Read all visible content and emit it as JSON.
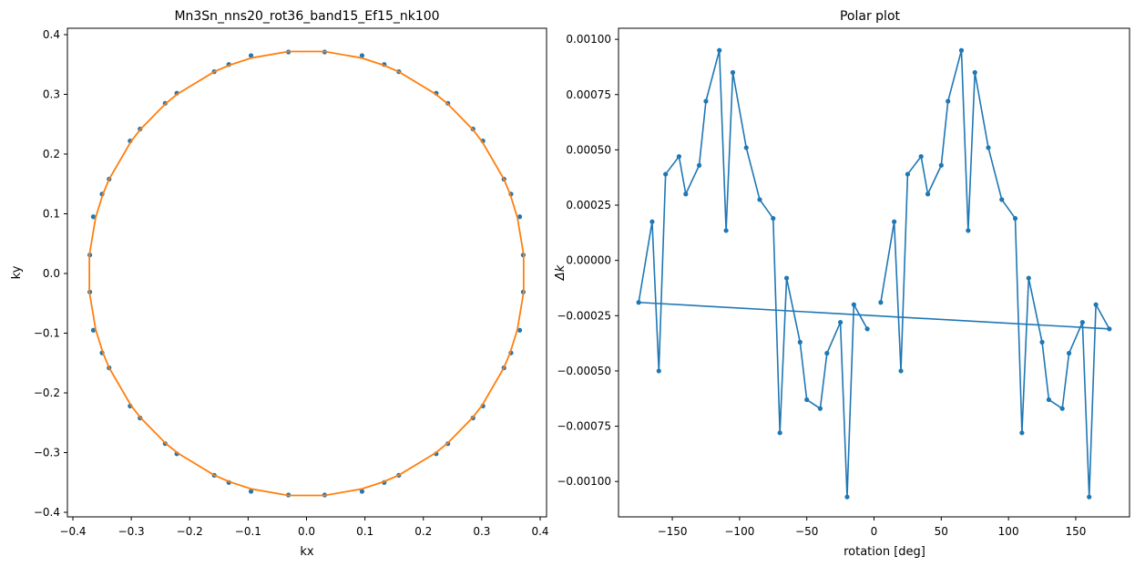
{
  "chart_data": [
    {
      "type": "scatter",
      "title": "Mn3Sn_nns20_rot36_band15_Ef15_nk100",
      "xlabel": "kx",
      "ylabel": "ky",
      "xlim": [
        -0.4,
        0.4
      ],
      "ylim": [
        -0.4,
        0.4
      ],
      "xticks": [
        -0.4,
        -0.3,
        -0.2,
        -0.1,
        0.0,
        0.1,
        0.2,
        0.3,
        0.4
      ],
      "xtick_labels": [
        "−0.4",
        "−0.3",
        "−0.2",
        "−0.1",
        "0.0",
        "0.1",
        "0.2",
        "0.3",
        "0.4"
      ],
      "yticks": [
        -0.4,
        -0.3,
        -0.2,
        -0.1,
        0.0,
        0.1,
        0.2,
        0.3,
        0.4
      ],
      "ytick_labels": [
        "−0.4",
        "−0.3",
        "−0.2",
        "−0.1",
        "0.0",
        "0.1",
        "0.2",
        "0.3",
        "0.4"
      ],
      "grid": false,
      "series": [
        {
          "kind": "points",
          "color": "#1f77b4",
          "x": [
            0.371,
            0.365,
            0.35,
            0.338,
            0.302,
            0.285,
            0.242,
            0.222,
            0.158,
            0.133,
            0.095,
            0.031,
            -0.031,
            -0.095,
            -0.133,
            -0.158,
            -0.222,
            -0.242,
            -0.285,
            -0.302,
            -0.338,
            -0.35,
            -0.365,
            -0.371,
            -0.371,
            -0.365,
            -0.35,
            -0.338,
            -0.302,
            -0.285,
            -0.242,
            -0.222,
            -0.158,
            -0.133,
            -0.095,
            -0.031,
            0.031,
            0.095,
            0.133,
            0.158,
            0.222,
            0.242,
            0.285,
            0.302,
            0.338,
            0.35,
            0.365,
            0.371
          ],
          "y": [
            0.031,
            0.095,
            0.133,
            0.158,
            0.222,
            0.242,
            0.285,
            0.302,
            0.338,
            0.35,
            0.365,
            0.371,
            0.371,
            0.365,
            0.35,
            0.338,
            0.302,
            0.285,
            0.242,
            0.222,
            0.158,
            0.133,
            0.095,
            0.031,
            -0.031,
            -0.095,
            -0.133,
            -0.158,
            -0.222,
            -0.242,
            -0.285,
            -0.302,
            -0.338,
            -0.35,
            -0.365,
            -0.371,
            -0.371,
            -0.365,
            -0.35,
            -0.338,
            -0.302,
            -0.285,
            -0.242,
            -0.222,
            -0.158,
            -0.133,
            -0.095,
            -0.031
          ]
        },
        {
          "kind": "line",
          "color": "#ff7f0e",
          "shape": "closed curve through all points",
          "radius": 0.373
        }
      ]
    },
    {
      "type": "line",
      "title": "Polar plot",
      "xlabel": "rotation [deg]",
      "ylabel": "Δk",
      "xlim": [
        -190,
        190
      ],
      "ylim": [
        -0.00116,
        0.00105
      ],
      "xticks": [
        -150,
        -100,
        -50,
        0,
        50,
        100,
        150
      ],
      "xtick_labels": [
        "−150",
        "−100",
        "−50",
        "0",
        "50",
        "100",
        "150"
      ],
      "yticks": [
        -0.001,
        -0.00075,
        -0.0005,
        -0.00025,
        0,
        0.00025,
        0.0005,
        0.00075,
        0.001
      ],
      "ytick_labels": [
        "−0.00100",
        "−0.00075",
        "−0.00050",
        "−0.00025",
        "0.00000",
        "0.00025",
        "0.00050",
        "0.00075",
        "0.00100"
      ],
      "grid": false,
      "series": [
        {
          "color": "#1f77b4",
          "marker": "o",
          "x": [
            5,
            15,
            20,
            25,
            35,
            40,
            50,
            55,
            65,
            70,
            75,
            85,
            95,
            105,
            110,
            115,
            125,
            130,
            140,
            145,
            155,
            160,
            165,
            175,
            -175,
            -165,
            -160,
            -155,
            -145,
            -140,
            -130,
            -125,
            -115,
            -110,
            -105,
            -95,
            -85,
            -75,
            -70,
            -65,
            -55,
            -50,
            -40,
            -35,
            -25,
            -20,
            -15,
            -5
          ],
          "y": [
            -0.00019,
            0.000175,
            -0.0005,
            0.00039,
            0.00047,
            0.0003,
            0.00043,
            0.00072,
            0.00095,
            0.000135,
            0.00085,
            0.00051,
            0.000275,
            0.00019,
            -0.00078,
            -8e-05,
            -0.00037,
            -0.00063,
            -0.00067,
            -0.00042,
            -0.00028,
            -0.00107,
            -0.0002,
            -0.00031,
            -0.00019,
            0.000175,
            -0.0005,
            0.00039,
            0.00047,
            0.0003,
            0.00043,
            0.00072,
            0.00095,
            0.000135,
            0.00085,
            0.00051,
            0.000275,
            0.00019,
            -0.00078,
            -8e-05,
            -0.00037,
            -0.00063,
            -0.00067,
            -0.00042,
            -0.00028,
            -0.00107,
            -0.0002,
            -0.00031
          ]
        }
      ]
    }
  ]
}
